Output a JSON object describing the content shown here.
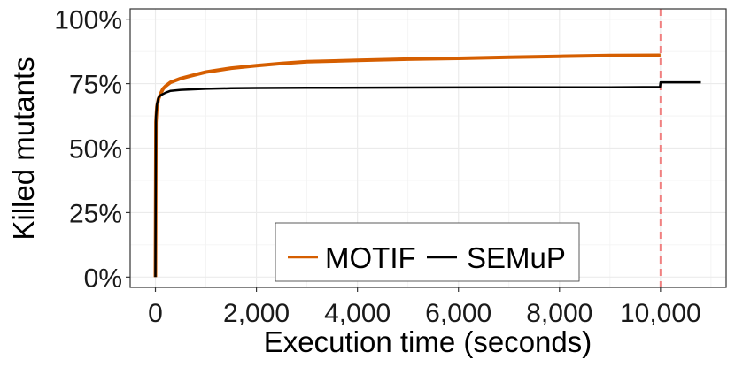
{
  "chart_data": {
    "type": "line",
    "title": "",
    "xlabel": "Execution time (seconds)",
    "ylabel": "Killed mutants",
    "xlim": [
      -500,
      11300
    ],
    "ylim": [
      -4,
      104
    ],
    "x_ticks": [
      0,
      2000,
      4000,
      6000,
      8000,
      10000
    ],
    "x_tick_labels": [
      "0",
      "2,000",
      "4,000",
      "6,000",
      "8,000",
      "10,000"
    ],
    "y_ticks": [
      0,
      25,
      50,
      75,
      100
    ],
    "y_tick_labels": [
      "0%",
      "25%",
      "50%",
      "75%",
      "100%"
    ],
    "grid": true,
    "legend": {
      "placement": "bottom-center",
      "entries": [
        "MOTIF",
        "SEMuP"
      ]
    },
    "vline": {
      "x": 10000,
      "color": "#f08080",
      "style": "dashed"
    },
    "series": [
      {
        "name": "MOTIF",
        "color": "#d55e00",
        "x": [
          0,
          10,
          30,
          60,
          100,
          150,
          200,
          300,
          500,
          700,
          1000,
          1500,
          2000,
          2500,
          3000,
          4000,
          5000,
          6000,
          7000,
          8000,
          9000,
          10000
        ],
        "y": [
          0,
          60,
          66,
          69,
          71,
          73,
          74,
          75.5,
          77,
          78,
          79.5,
          81,
          82,
          82.8,
          83.5,
          84,
          84.5,
          84.8,
          85.2,
          85.6,
          85.9,
          86
        ]
      },
      {
        "name": "SEMuP",
        "color": "#000000",
        "x": [
          0,
          10,
          30,
          60,
          100,
          150,
          200,
          300,
          500,
          1000,
          1500,
          2000,
          3000,
          5000,
          7000,
          9000,
          9990,
          10000,
          10800
        ],
        "y": [
          0,
          62,
          67,
          69.5,
          70.5,
          71,
          71.5,
          72.2,
          72.6,
          73,
          73.2,
          73.3,
          73.4,
          73.5,
          73.6,
          73.6,
          73.7,
          75.5,
          75.5
        ]
      }
    ]
  }
}
